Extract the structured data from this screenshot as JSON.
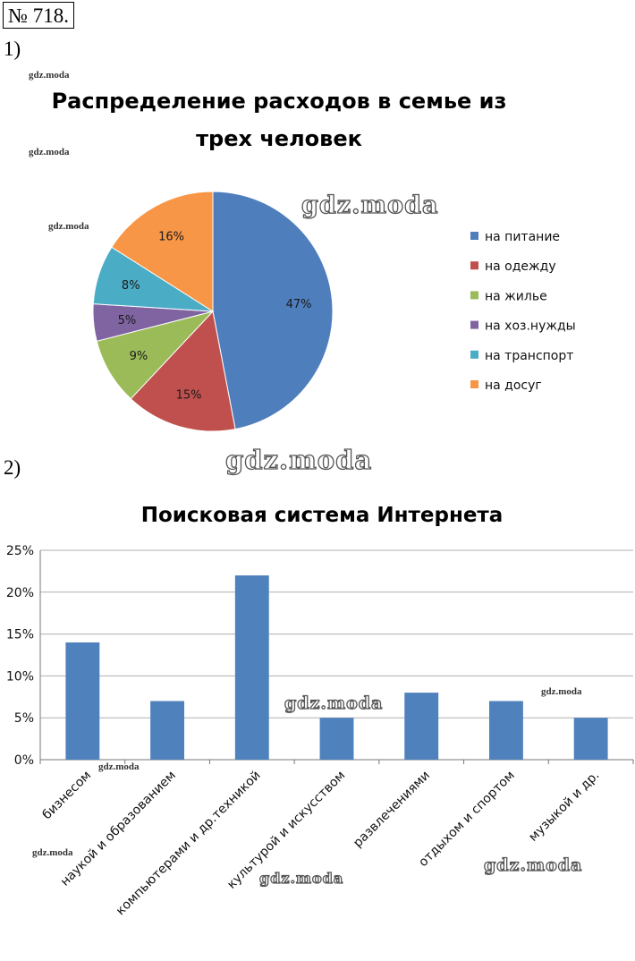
{
  "header": {
    "task_number": "№ 718."
  },
  "parts": [
    "1)",
    "2)"
  ],
  "watermarks": {
    "small": [
      "gdz.moda",
      "gdz.moda",
      "gdz.moda",
      "gdz.moda",
      "gdz.moda",
      "gdz.moda",
      "gdz.moda"
    ],
    "big": [
      "gdz.moda",
      "gdz.moda",
      "gdz.moda",
      "gdz.moda"
    ]
  },
  "chart_data": [
    {
      "type": "pie",
      "title": "Распределение расходов в семье из трех человек",
      "title_lines": [
        "Распределение расходов в семье из",
        "трех человек"
      ],
      "legend_position": "right",
      "slices": [
        {
          "name": "на питание",
          "value": 47,
          "label": "47%",
          "color": "#4F7EBD"
        },
        {
          "name": "на одежду",
          "value": 15,
          "label": "15%",
          "color": "#C0504D"
        },
        {
          "name": "на жилье",
          "value": 9,
          "label": "9%",
          "color": "#9BBB59"
        },
        {
          "name": "на хоз.нужды",
          "value": 5,
          "label": "5%",
          "color": "#8064A2"
        },
        {
          "name": "на транспорт",
          "value": 8,
          "label": "8%",
          "color": "#4BACC6"
        },
        {
          "name": "на досуг",
          "value": 16,
          "label": "16%",
          "color": "#F79646"
        }
      ]
    },
    {
      "type": "bar",
      "title": "Поисковая система Интернета",
      "categories": [
        "бизнесом",
        "наукой и образованием",
        "компьютерами и др.техникой",
        "культурой и искусством",
        "развлечениями",
        "отдыхом и спортом",
        "музыкой и др."
      ],
      "values": [
        14,
        7,
        22,
        5,
        8,
        7,
        5
      ],
      "unit": "%",
      "ylim": [
        0,
        25
      ],
      "yticks": [
        0,
        5,
        10,
        15,
        20,
        25
      ],
      "ytick_labels": [
        "0%",
        "5%",
        "10%",
        "15%",
        "20%",
        "25%"
      ],
      "grid": true,
      "color": "#4F81BD"
    }
  ]
}
